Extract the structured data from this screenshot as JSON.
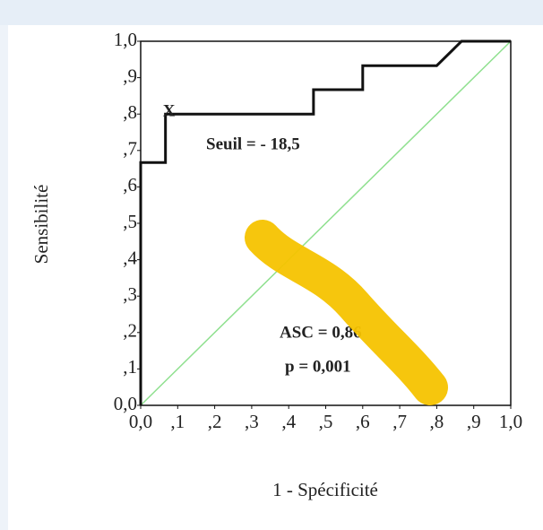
{
  "chart_data": {
    "type": "line",
    "xlabel": "1 - Spécificité",
    "ylabel": "Sensibilité",
    "x": [
      0,
      0,
      0.067,
      0.067,
      0.467,
      0.467,
      0.6,
      0.6,
      0.8,
      0.867,
      1
    ],
    "series": [
      {
        "color": "#111111",
        "values": [
          0,
          0.667,
          0.667,
          0.8,
          0.8,
          0.867,
          0.867,
          0.933,
          0.933,
          1,
          1
        ]
      }
    ],
    "diagonal_color": "#8fe08f",
    "marker": "X",
    "annotations": [
      "Seuil = - 18,5",
      "ASC = 0,86",
      "p = 0,001"
    ],
    "xlim": [
      0,
      1
    ],
    "ylim": [
      0,
      1
    ],
    "xticks": [
      {
        "value": 0,
        "label": "0,0"
      },
      {
        "value": 0.1,
        "label": ",1"
      },
      {
        "value": 0.2,
        "label": ",2"
      },
      {
        "value": 0.3,
        "label": ",3"
      },
      {
        "value": 0.4,
        "label": ",4"
      },
      {
        "value": 0.5,
        "label": ",5"
      },
      {
        "value": 0.6,
        "label": ",6"
      },
      {
        "value": 0.7,
        "label": ",7"
      },
      {
        "value": 0.8,
        "label": ",8"
      },
      {
        "value": 0.9,
        "label": ",9"
      },
      {
        "value": 1,
        "label": "1,0"
      }
    ],
    "yticks": [
      {
        "value": 0,
        "label": "0,0"
      },
      {
        "value": 0.1,
        "label": ",1"
      },
      {
        "value": 0.2,
        "label": ",2"
      },
      {
        "value": 0.3,
        "label": ",3"
      },
      {
        "value": 0.4,
        "label": ",4"
      },
      {
        "value": 0.5,
        "label": ",5"
      },
      {
        "value": 0.6,
        "label": ",6"
      },
      {
        "value": 0.7,
        "label": ",7"
      },
      {
        "value": 0.8,
        "label": ",8"
      },
      {
        "value": 0.9,
        "label": ",9"
      },
      {
        "value": 1,
        "label": "1,0"
      }
    ]
  }
}
